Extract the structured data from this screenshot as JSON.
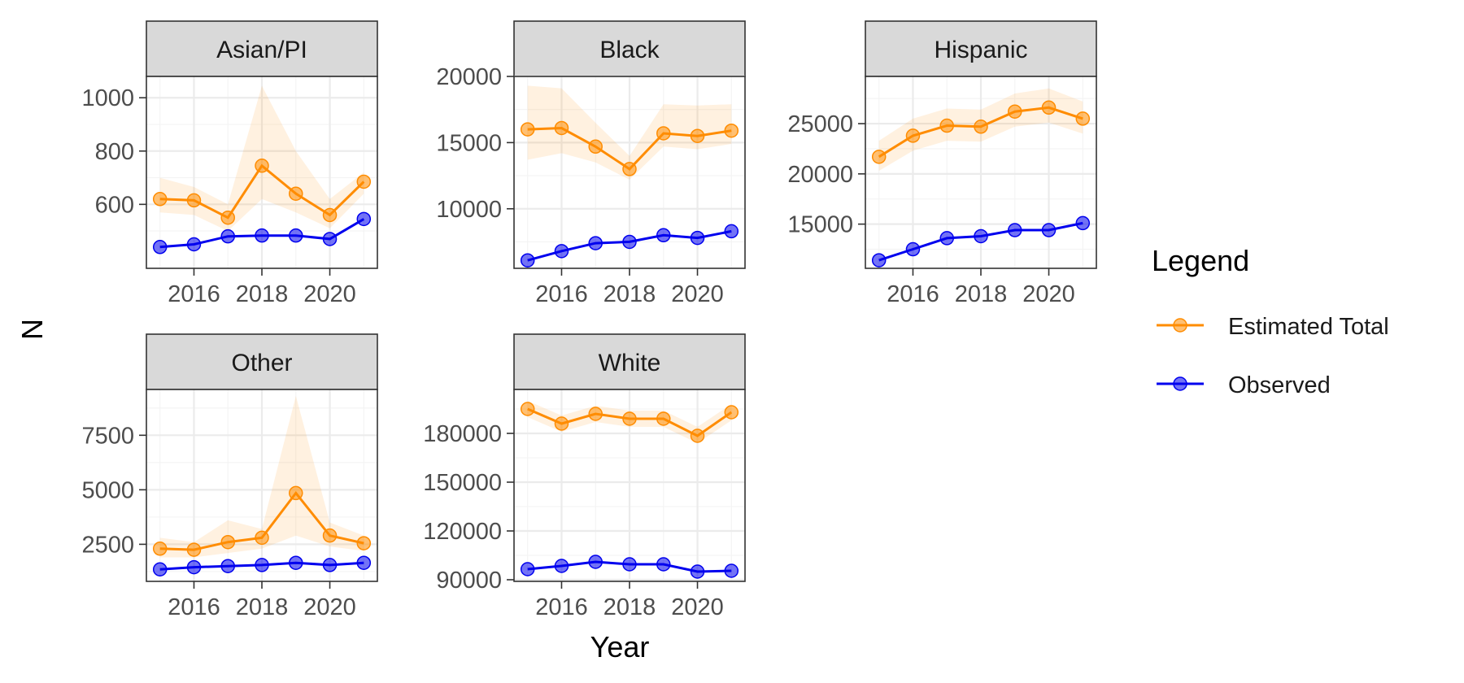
{
  "chart_data": {
    "type": "line",
    "xlabel": "Year",
    "ylabel": "N",
    "x_breaks": [
      2016,
      2018,
      2020
    ],
    "legend": {
      "title": "Legend",
      "position": "right",
      "entries": [
        {
          "name": "Estimated Total",
          "color": "#ff8c00"
        },
        {
          "name": "Observed",
          "color": "#0000ee"
        }
      ]
    },
    "panels": [
      {
        "name": "Asian/PI",
        "xlim": [
          2014.6,
          2021.4
        ],
        "ylim": [
          360,
          1080
        ],
        "y_breaks": [
          600,
          800,
          1000
        ],
        "x": [
          2015,
          2016,
          2017,
          2018,
          2019,
          2020,
          2021
        ],
        "series": [
          {
            "name": "Estimated Total",
            "color": "#ff8c00",
            "values": [
              620,
              615,
              550,
              745,
              640,
              560,
              685
            ],
            "lower": [
              570,
              560,
              500,
              620,
              570,
              510,
              640
            ],
            "upper": [
              700,
              665,
              600,
              1045,
              800,
              620,
              720
            ]
          },
          {
            "name": "Observed",
            "color": "#0000ee",
            "values": [
              440,
              450,
              480,
              483,
              483,
              470,
              545
            ]
          }
        ]
      },
      {
        "name": "Black",
        "xlim": [
          2014.6,
          2021.4
        ],
        "ylim": [
          5500,
          20000
        ],
        "y_breaks": [
          10000,
          15000,
          20000
        ],
        "x": [
          2015,
          2016,
          2017,
          2018,
          2019,
          2020,
          2021
        ],
        "series": [
          {
            "name": "Estimated Total",
            "color": "#ff8c00",
            "values": [
              16000,
              16100,
              14700,
              13000,
              15700,
              15500,
              15900
            ],
            "lower": [
              13700,
              14200,
              13500,
              12200,
              14700,
              14500,
              14900
            ],
            "upper": [
              19300,
              19100,
              16500,
              14000,
              17900,
              17800,
              17900
            ]
          },
          {
            "name": "Observed",
            "color": "#0000ee",
            "values": [
              6100,
              6800,
              7400,
              7500,
              8000,
              7800,
              8300
            ]
          }
        ]
      },
      {
        "name": "Hispanic",
        "xlim": [
          2014.6,
          2021.4
        ],
        "ylim": [
          10600,
          29700
        ],
        "y_breaks": [
          15000,
          20000,
          25000
        ],
        "x": [
          2015,
          2016,
          2017,
          2018,
          2019,
          2020,
          2021
        ],
        "series": [
          {
            "name": "Estimated Total",
            "color": "#ff8c00",
            "values": [
              21700,
              23800,
              24800,
              24700,
              26200,
              26600,
              25500
            ],
            "lower": [
              20300,
              22300,
              23300,
              23200,
              24700,
              25100,
              24000
            ],
            "upper": [
              23300,
              25500,
              26500,
              26400,
              28000,
              28500,
              27200
            ]
          },
          {
            "name": "Observed",
            "color": "#0000ee",
            "values": [
              11400,
              12500,
              13600,
              13800,
              14400,
              14400,
              15100
            ]
          }
        ]
      },
      {
        "name": "Other",
        "xlim": [
          2014.6,
          2021.4
        ],
        "ylim": [
          800,
          9600
        ],
        "y_breaks": [
          2500,
          5000,
          7500
        ],
        "x": [
          2015,
          2016,
          2017,
          2018,
          2019,
          2020,
          2021
        ],
        "series": [
          {
            "name": "Estimated Total",
            "color": "#ff8c00",
            "values": [
              2300,
              2250,
              2600,
              2800,
              4850,
              2900,
              2550
            ],
            "lower": [
              1900,
              1900,
              2100,
              2300,
              2900,
              2400,
              2200
            ],
            "upper": [
              2800,
              2600,
              3600,
              3200,
              9300,
              3500,
              2900
            ]
          },
          {
            "name": "Observed",
            "color": "#0000ee",
            "values": [
              1350,
              1450,
              1500,
              1550,
              1650,
              1550,
              1650
            ]
          }
        ]
      },
      {
        "name": "White",
        "xlim": [
          2014.6,
          2021.4
        ],
        "ylim": [
          89000,
          207000
        ],
        "y_breaks": [
          90000,
          120000,
          150000,
          180000
        ],
        "x": [
          2015,
          2016,
          2017,
          2018,
          2019,
          2020,
          2021
        ],
        "series": [
          {
            "name": "Estimated Total",
            "color": "#ff8c00",
            "values": [
              195000,
              186000,
              192000,
              189000,
              189000,
              178500,
              193000
            ],
            "lower": [
              190000,
              181000,
              187000,
              184000,
              184000,
              174000,
              188000
            ],
            "upper": [
              200000,
              191000,
              197000,
              194000,
              194000,
              184000,
              198000
            ]
          },
          {
            "name": "Observed",
            "color": "#0000ee",
            "values": [
              96500,
              98500,
              101000,
              99500,
              99500,
              95000,
              95500
            ]
          }
        ]
      }
    ]
  }
}
